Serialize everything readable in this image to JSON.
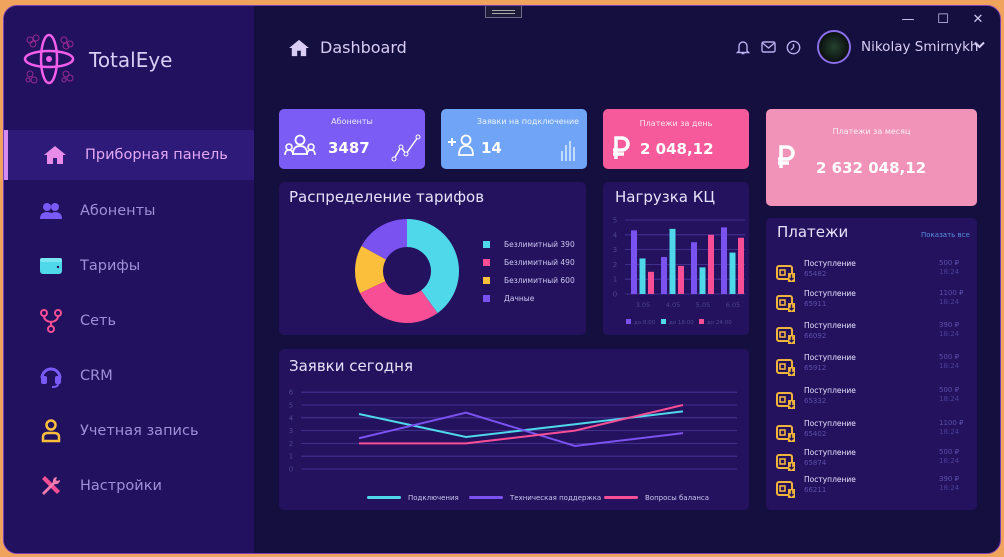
{
  "app": {
    "name": "TotalEye"
  },
  "window_controls": {
    "minimize": "—",
    "maximize": "☐",
    "close": "✕"
  },
  "sidebar": {
    "items": [
      {
        "label": "Приборная панель",
        "icon": "home-icon",
        "active": true
      },
      {
        "label": "Абоненты",
        "icon": "users-icon"
      },
      {
        "label": "Тарифы",
        "icon": "wallet-icon"
      },
      {
        "label": "Сеть",
        "icon": "network-icon"
      },
      {
        "label": "CRM",
        "icon": "headset-icon"
      },
      {
        "label": "Учетная запись",
        "icon": "user-icon"
      },
      {
        "label": "Настройки",
        "icon": "tools-icon"
      }
    ]
  },
  "header": {
    "title": "Dashboard",
    "user": {
      "name": "Nikolay Smirnykh"
    }
  },
  "stats": {
    "subscribers": {
      "title": "Абоненты",
      "value": "3487",
      "color": "#7b5cf5"
    },
    "requests": {
      "title": "Заявки на подключение",
      "value": "14",
      "color": "#6fa4f6"
    },
    "payments_day": {
      "title": "Платежи за день",
      "value": "2 048,12",
      "color": "#f75a9a"
    },
    "payments_month": {
      "title": "Платежи за месяц",
      "value": "2 632 048,12",
      "color": "#f193b8"
    }
  },
  "tariffs_panel": {
    "title": "Распределение тарифов"
  },
  "load_panel": {
    "title": "Нагрузка КЦ"
  },
  "requests_panel": {
    "title": "Заявки сегодня"
  },
  "payments_panel": {
    "title": "Платежи",
    "show_all": "Показать все",
    "items": [
      {
        "label": "Поступление",
        "id": "65482",
        "amount": "500 ₽",
        "time": "18:24"
      },
      {
        "label": "Поступление",
        "id": "65911",
        "amount": "1100 ₽",
        "time": "18:24"
      },
      {
        "label": "Поступление",
        "id": "66092",
        "amount": "390 ₽",
        "time": "18:24"
      },
      {
        "label": "Поступление",
        "id": "65912",
        "amount": "500 ₽",
        "time": "18:24"
      },
      {
        "label": "Поступление",
        "id": "65332",
        "amount": "500 ₽",
        "time": "18:24"
      },
      {
        "label": "Поступление",
        "id": "65402",
        "amount": "1100 ₽",
        "time": "18:24"
      },
      {
        "label": "Поступление",
        "id": "65874",
        "amount": "500 ₽",
        "time": "18:24"
      },
      {
        "label": "Поступление",
        "id": "66211",
        "amount": "390 ₽",
        "time": "18:24"
      }
    ]
  },
  "chart_data": [
    {
      "type": "pie",
      "title": "Распределение тарифов",
      "categories": [
        "Безлимитный 390",
        "Безлимитный 490",
        "Безлимитный 600",
        "Дачные"
      ],
      "values": [
        40,
        28,
        15,
        17
      ],
      "colors": [
        "#4fd8ea",
        "#f74e95",
        "#fbbf3c",
        "#7a52f0"
      ],
      "legend_position": "right"
    },
    {
      "type": "bar",
      "title": "Нагрузка КЦ",
      "categories": [
        "3.05",
        "4.05",
        "5.05",
        "6.05"
      ],
      "series": [
        {
          "name": "до 8:00",
          "values": [
            4.3,
            2.5,
            3.5,
            4.5
          ],
          "color": "#7a52f0"
        },
        {
          "name": "до 18:00",
          "values": [
            2.4,
            4.4,
            1.8,
            2.8
          ],
          "color": "#4fd8ea"
        },
        {
          "name": "до 24:00",
          "values": [
            1.5,
            1.9,
            4.0,
            3.8
          ],
          "color": "#f74e95"
        }
      ],
      "yticks": [
        "0",
        "1",
        "2",
        "3",
        "4",
        "5"
      ],
      "ylim": [
        0,
        5
      ],
      "grid": true,
      "legend_position": "bottom"
    },
    {
      "type": "line",
      "title": "Заявки сегодня",
      "x": [
        1,
        2,
        3,
        4
      ],
      "series": [
        {
          "name": "Подключения",
          "values": [
            4.3,
            2.5,
            3.5,
            4.5
          ],
          "color": "#4fd8ea"
        },
        {
          "name": "Техническая поддержка",
          "values": [
            2.4,
            4.4,
            1.8,
            2.8
          ],
          "color": "#7a52f0"
        },
        {
          "name": "Вопросы баланса",
          "values": [
            2,
            2,
            3,
            5
          ],
          "color": "#f74e95"
        }
      ],
      "yticks": [
        "0",
        "1",
        "2",
        "3",
        "4",
        "5",
        "6"
      ],
      "ylim": [
        0,
        6
      ],
      "grid": true,
      "legend_position": "bottom"
    }
  ]
}
